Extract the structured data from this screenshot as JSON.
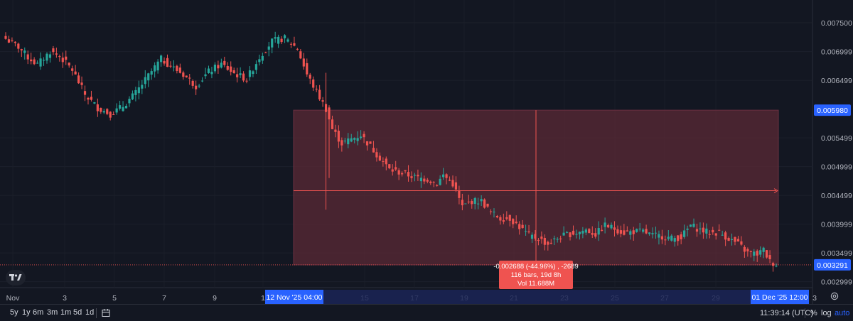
{
  "chart_data": {
    "type": "candlestick",
    "y_ticks": [
      "0.007500",
      "0.006999",
      "0.006499",
      "0.005499",
      "0.004999",
      "0.004499",
      "0.003999",
      "0.003499",
      "0.002999"
    ],
    "x_ticks": [
      "Nov",
      "3",
      "5",
      "7",
      "9",
      "1",
      "15",
      "17",
      "19",
      "21",
      "23",
      "25",
      "27",
      "29",
      "3"
    ],
    "ylim": [
      0.00275,
      0.00765
    ],
    "price_labels": {
      "top": "0.005980",
      "bottom": "0.003291"
    },
    "time_labels": {
      "start": "12 Nov '25  04:00",
      "end": "01 Dec '25  12:00"
    },
    "measurement": {
      "line1": "-0.002688 (-44.96%) , -2689",
      "line2": "116 bars, 19d 8h",
      "line3": "Vol 11.688M"
    },
    "colors": {
      "up": "#26a69a",
      "down": "#ef5350",
      "measure_fill": "#5b2a36",
      "label_blue": "#2962ff"
    }
  },
  "toolbar": {
    "ranges": [
      "5y",
      "1y",
      "6m",
      "3m",
      "1m",
      "5d",
      "1d"
    ],
    "calendar_icon": "calendar-icon",
    "time": "11:39:14 (UTC)",
    "percent": "%",
    "log": "log",
    "auto": "auto"
  },
  "logo": "tradingview-logo"
}
